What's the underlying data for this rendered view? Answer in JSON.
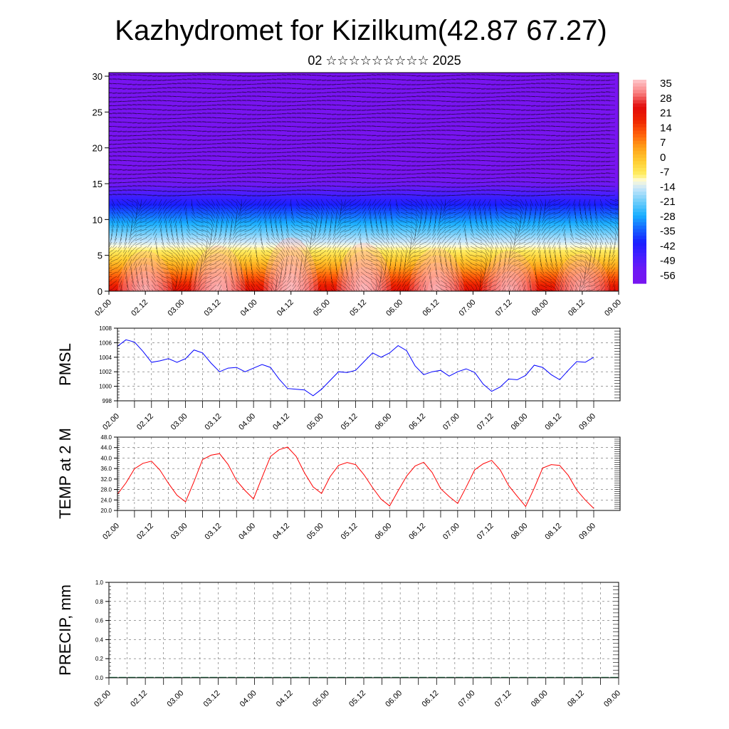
{
  "title": "Kazhydromet for Kizilkum(42.87 67.27)",
  "subtitle": "02 ☆☆☆☆☆☆☆☆☆ 2025",
  "chart_data": [
    {
      "type": "heatmap",
      "name": "vertical temperature cross-section with wind vectors",
      "x_tick_labels": [
        "02.00",
        "02.12",
        "03.00",
        "03.12",
        "04.00",
        "04.12",
        "05.00",
        "05.12",
        "06.00",
        "06.12",
        "07.00",
        "07.12",
        "08.00",
        "08.12",
        "09.00"
      ],
      "y_ticks": [
        0,
        5,
        10,
        15,
        20,
        25,
        30
      ],
      "ylim": [
        0,
        30.5
      ],
      "colorbar_labels": [
        "35",
        "28",
        "21",
        "14",
        "7",
        "0",
        "-7",
        "-14",
        "-21",
        "-28",
        "-35",
        "-42",
        "-49",
        "-56"
      ],
      "colorbar_range": [
        -63,
        42
      ],
      "surface_temp_series": [
        25,
        33,
        26,
        35,
        27,
        38,
        24,
        36,
        28,
        34,
        25,
        33,
        27,
        32,
        26
      ]
    },
    {
      "type": "line",
      "ylabel": "PMSL",
      "color": "#0000ff",
      "ylim": [
        998,
        1008
      ],
      "y_ticks": [
        "998",
        "1000",
        "1002",
        "1004",
        "1006",
        "1008"
      ],
      "x_tick_labels": [
        "02.00",
        "02.12",
        "03.00",
        "03.12",
        "04.00",
        "04.12",
        "05.00",
        "05.12",
        "06.00",
        "06.12",
        "07.00",
        "07.12",
        "08.00",
        "08.12",
        "09.00"
      ],
      "x": [
        0,
        3,
        6,
        9,
        12,
        15,
        18,
        21,
        24,
        27,
        30,
        33,
        36,
        39,
        42,
        45,
        48,
        51,
        54,
        57,
        60,
        63,
        66,
        69,
        72,
        75,
        78,
        81,
        84,
        87,
        90,
        93,
        96,
        99,
        102,
        105,
        108,
        111,
        114,
        117,
        120,
        123,
        126,
        129,
        132,
        135,
        138,
        141,
        144,
        147,
        150,
        153,
        156,
        159,
        162,
        165,
        168
      ],
      "values": [
        1005.5,
        1006.4,
        1006.1,
        1004.8,
        1003.3,
        1003.5,
        1003.8,
        1003.3,
        1003.8,
        1005,
        1004.6,
        1003.2,
        1002,
        1002.5,
        1002.6,
        1002,
        1002.5,
        1003,
        1002.6,
        1001,
        999.7,
        999.6,
        999.5,
        998.7,
        999.6,
        1000.8,
        1002,
        1001.9,
        1002.2,
        1003.4,
        1004.6,
        1004,
        1004.6,
        1005.6,
        1004.9,
        1002.8,
        1001.6,
        1002,
        1002.2,
        1001.4,
        1002,
        1002.4,
        1001.9,
        1000.3,
        999.3,
        999.9,
        1001,
        1000.9,
        1001.5,
        1002.9,
        1002.6,
        1001.6,
        1000.9,
        1002.2,
        1003.4,
        1003.3,
        1004
      ]
    },
    {
      "type": "line",
      "ylabel": "TEMP at 2 M",
      "color": "#ff0000",
      "ylim": [
        20,
        48
      ],
      "y_ticks": [
        "20.0",
        "24.0",
        "28.0",
        "32.0",
        "36.0",
        "40.0",
        "44.0",
        "48.0"
      ],
      "x_tick_labels": [
        "02.00",
        "02.12",
        "03.00",
        "03.12",
        "04.00",
        "04.12",
        "05.00",
        "05.12",
        "06.00",
        "06.12",
        "07.00",
        "07.12",
        "08.00",
        "08.12",
        "09.00"
      ],
      "x": [
        0,
        3,
        6,
        9,
        12,
        15,
        18,
        21,
        24,
        27,
        30,
        33,
        36,
        39,
        42,
        45,
        48,
        51,
        54,
        57,
        60,
        63,
        66,
        69,
        72,
        75,
        78,
        81,
        84,
        87,
        90,
        93,
        96,
        99,
        102,
        105,
        108,
        111,
        114,
        117,
        120,
        123,
        126,
        129,
        132,
        135,
        138,
        141,
        144,
        147,
        150,
        153,
        156,
        159,
        162,
        165,
        168
      ],
      "values": [
        26.2,
        30.5,
        35.9,
        38,
        38.8,
        35.4,
        30.3,
        25.8,
        23.3,
        31,
        39.4,
        41.1,
        41.7,
        37.6,
        31.4,
        27.6,
        24.4,
        32.6,
        40.6,
        43.2,
        44.2,
        40.7,
        34.3,
        29,
        26.5,
        32.9,
        37.2,
        38.3,
        37.5,
        33.6,
        28.7,
        24.3,
        21.7,
        27.5,
        33.1,
        37,
        38.4,
        34.5,
        28.3,
        25.3,
        22.7,
        28.9,
        35.5,
        37.8,
        39.1,
        35.5,
        29.5,
        25.4,
        21.5,
        28.5,
        36.2,
        37.5,
        37.2,
        33.4,
        27.8,
        24,
        20.8
      ]
    },
    {
      "type": "bar",
      "ylabel": "PRECIP, mm",
      "color": "#2e8b57",
      "ylim": [
        0,
        1
      ],
      "y_ticks": [
        "0.0",
        "0.2",
        "0.4",
        "0.6",
        "0.8",
        "1.0"
      ],
      "x_tick_labels": [
        "02.00",
        "02.12",
        "03.00",
        "03.12",
        "04.00",
        "04.12",
        "05.00",
        "05.12",
        "06.00",
        "06.12",
        "07.00",
        "07.12",
        "08.00",
        "08.12",
        "09.00"
      ],
      "values": [
        0,
        0,
        0,
        0,
        0,
        0,
        0,
        0,
        0,
        0,
        0,
        0,
        0,
        0,
        0,
        0,
        0,
        0,
        0,
        0,
        0,
        0,
        0,
        0,
        0,
        0,
        0,
        0,
        0,
        0,
        0,
        0,
        0,
        0,
        0,
        0,
        0,
        0,
        0,
        0,
        0,
        0,
        0,
        0,
        0,
        0,
        0,
        0,
        0,
        0,
        0,
        0,
        0,
        0,
        0,
        0
      ]
    }
  ]
}
